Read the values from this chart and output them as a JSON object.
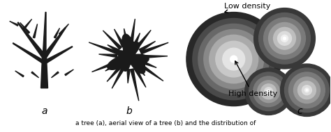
{
  "background_color": "#ffffff",
  "label_a": "a",
  "label_b": "b",
  "label_c": "c",
  "label_low_density": "Low density",
  "label_high_density": "High density",
  "figsize": [
    4.74,
    1.9
  ],
  "dpi": 100,
  "tree_color": "#1a1a1a",
  "circle_colors_large": [
    "#282828",
    "#4a4a4a",
    "#686868",
    "#888888",
    "#aaaaaa",
    "#c8c8c8",
    "#e4e4e4",
    "#ffffff"
  ],
  "circle_colors_small": [
    "#383838",
    "#5a5a5a",
    "#7a7a7a",
    "#9a9a9a",
    "#bebebe",
    "#dcdcdc",
    "#f0f0f0",
    "#ffffff"
  ],
  "caption_text": "a tree (a), aerial view of a tree (b) and the distribution of"
}
